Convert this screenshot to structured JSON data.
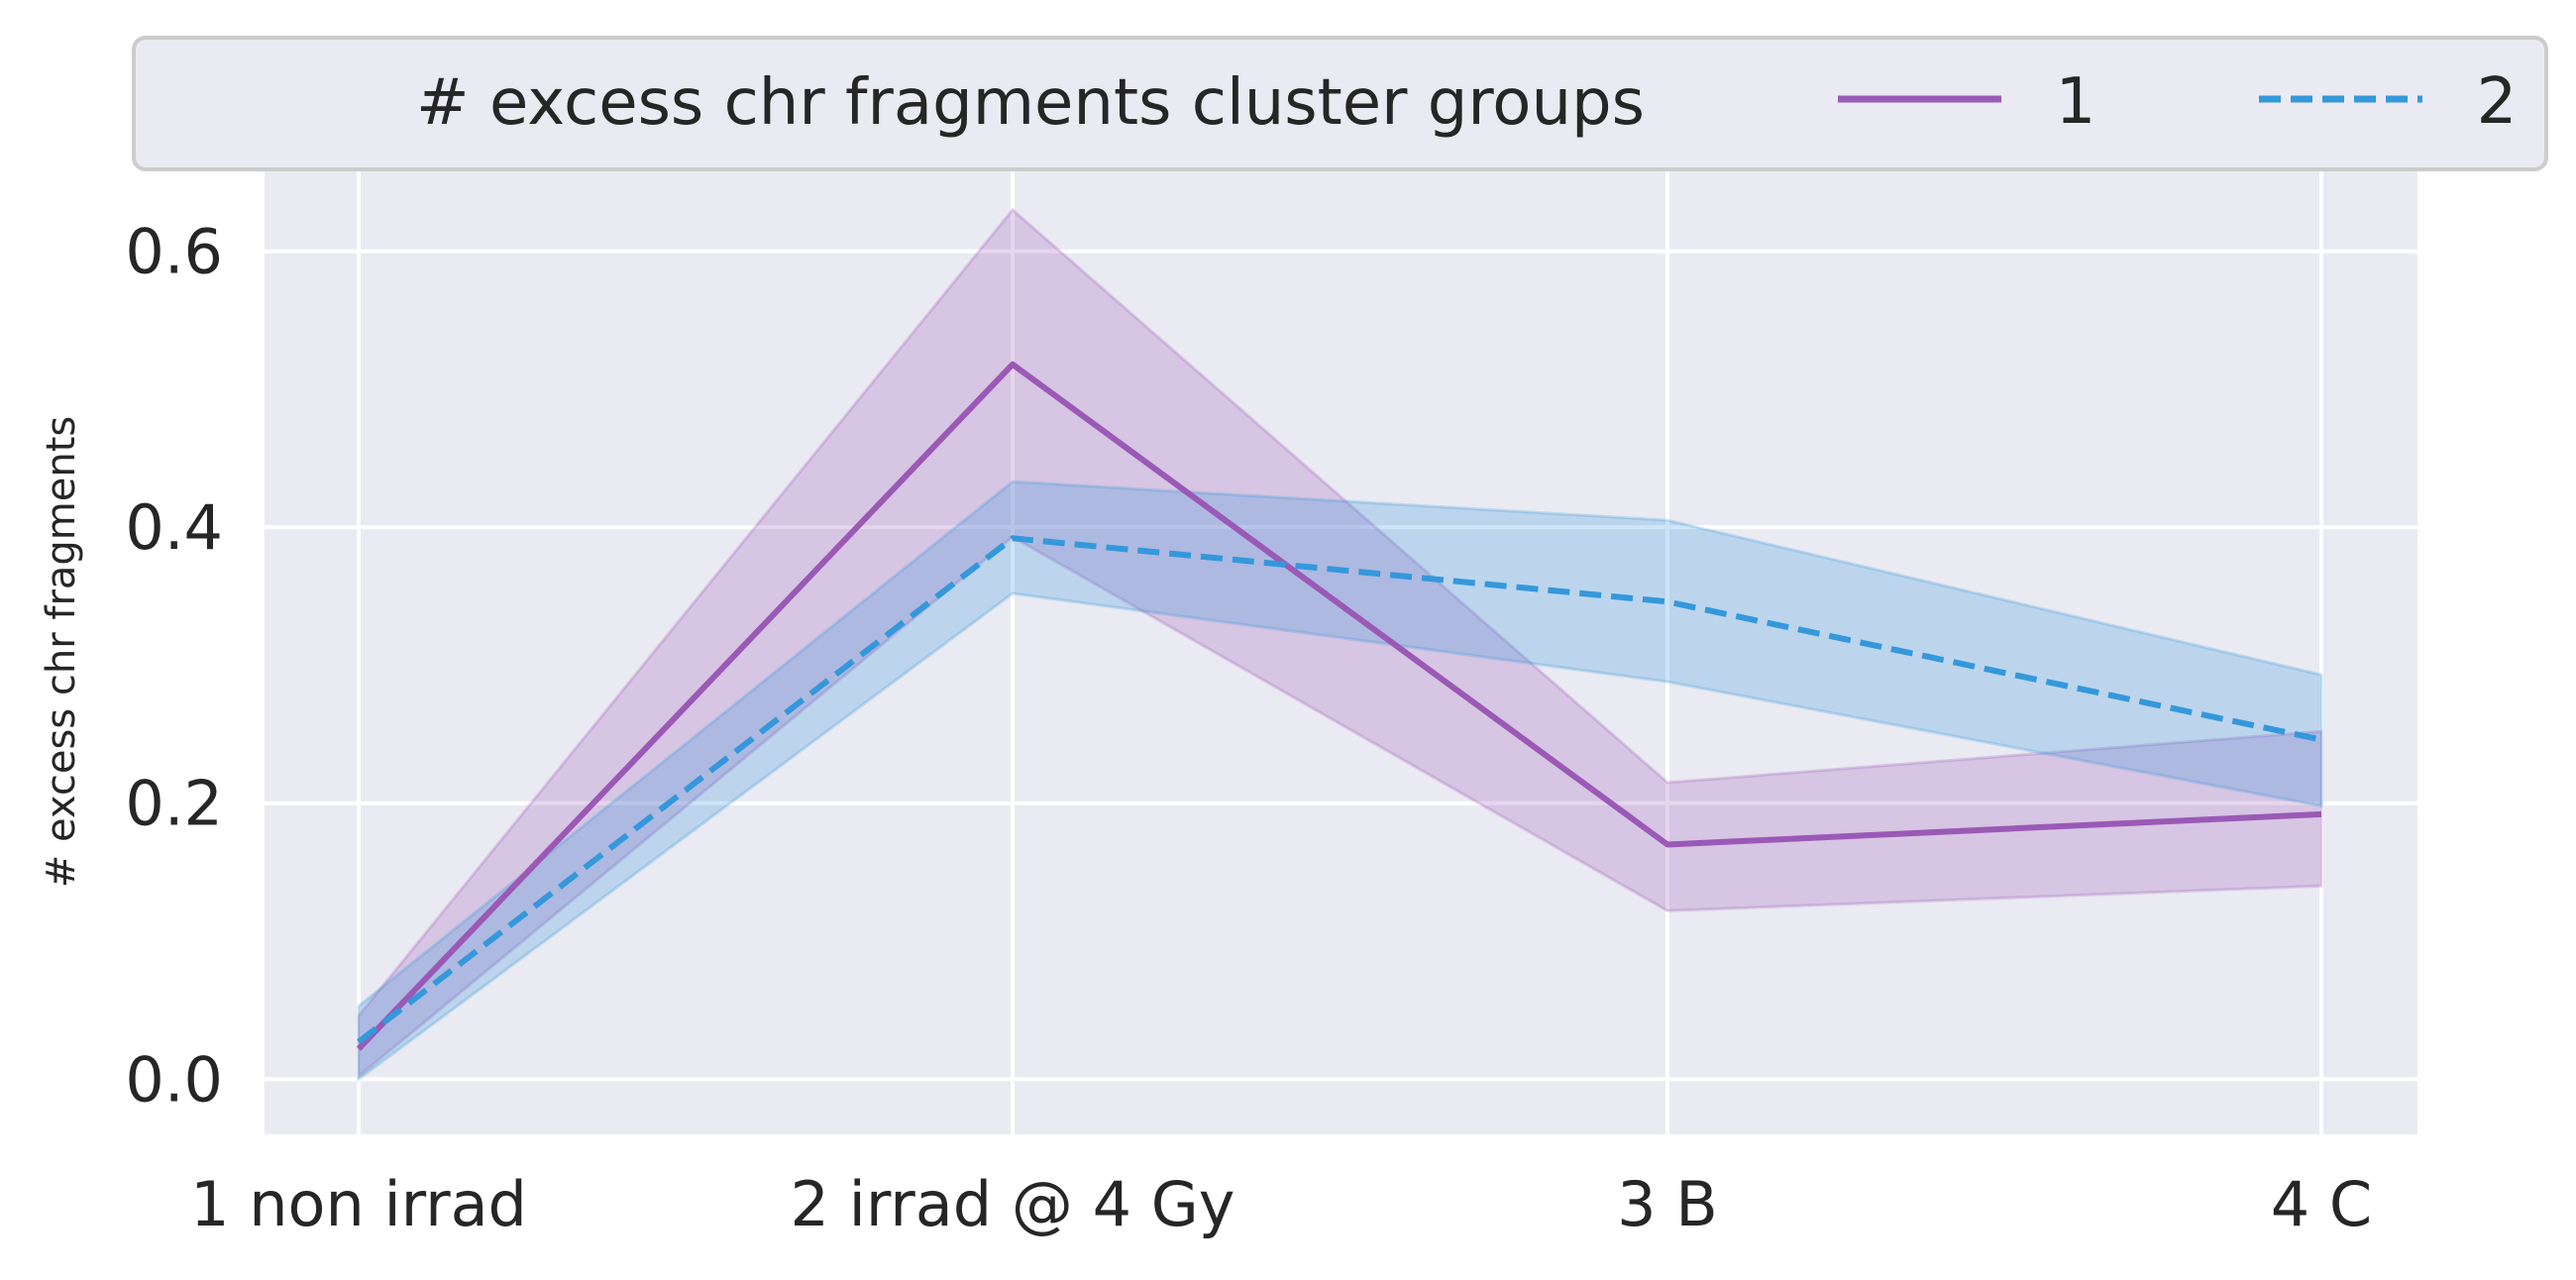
{
  "chart_data": {
    "type": "line",
    "title": "",
    "xlabel": "",
    "ylabel": "# excess chr fragments",
    "categories": [
      "1 non irrad",
      "2 irrad @ 4 Gy",
      "3 B",
      "4 C"
    ],
    "ylim": [
      -0.04,
      0.66
    ],
    "yticks": [
      0.0,
      0.2,
      0.4,
      0.6
    ],
    "ytick_labels": [
      "0.0",
      "0.2",
      "0.4",
      "0.6"
    ],
    "grid": true,
    "legend": {
      "title": "# excess chr fragments cluster groups",
      "placement": "top",
      "entries": [
        "1",
        "2"
      ]
    },
    "series": [
      {
        "name": "1",
        "color": "#9b59b6",
        "dash": "solid",
        "values": [
          0.022,
          0.518,
          0.17,
          0.192
        ],
        "ci_low": [
          0.002,
          0.393,
          0.122,
          0.14
        ],
        "ci_high": [
          0.046,
          0.63,
          0.215,
          0.252
        ]
      },
      {
        "name": "2",
        "color": "#3498db",
        "dash": "dashed",
        "values": [
          0.027,
          0.392,
          0.346,
          0.246
        ],
        "ci_low": [
          0.0,
          0.352,
          0.288,
          0.198
        ],
        "ci_high": [
          0.053,
          0.433,
          0.405,
          0.293
        ]
      }
    ],
    "colors": {
      "plot_background": "#eaeaf2",
      "grid": "#ffffff",
      "text": "#262626"
    }
  }
}
